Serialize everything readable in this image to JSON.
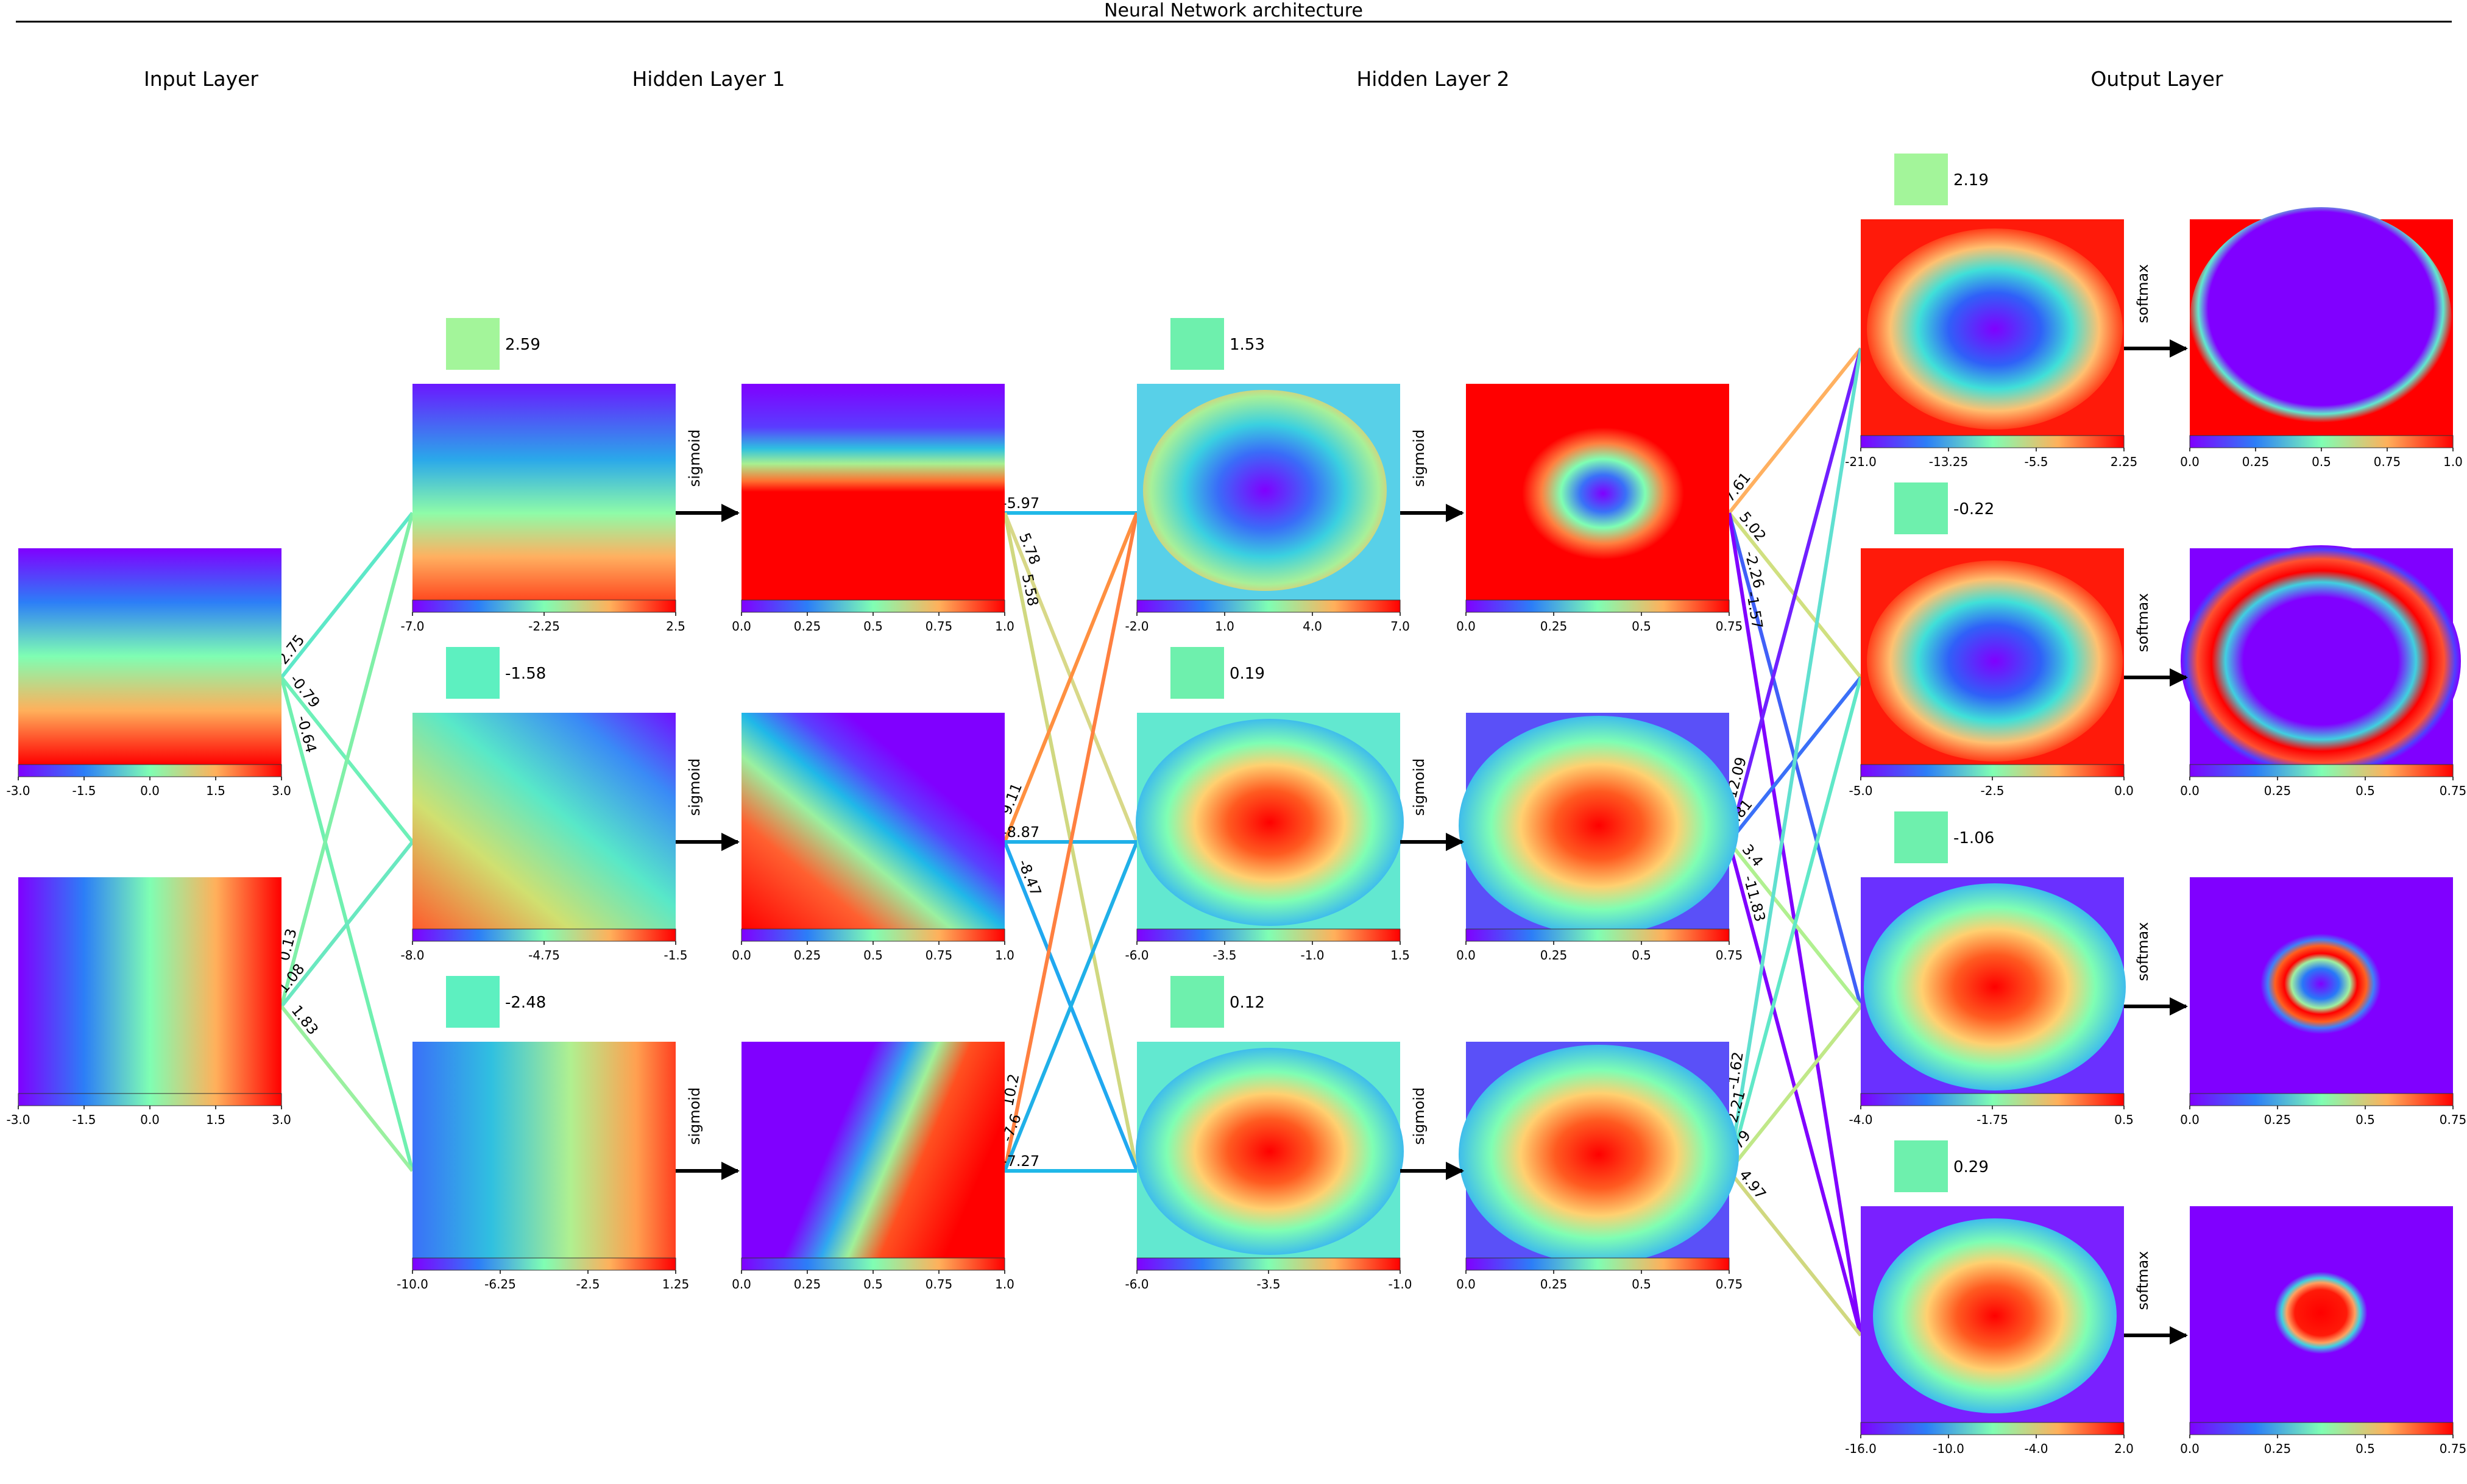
{
  "title": "Neural Network architecture",
  "layer_titles": [
    "Input Layer",
    "Hidden Layer 1",
    "Hidden Layer 2",
    "Output Layer"
  ],
  "activation_labels": {
    "hidden": "sigmoid",
    "output": "softmax"
  },
  "input_layer": {
    "nodes": [
      {
        "kind": "horizontal-gradient-rows",
        "ticks": [
          "-3.0",
          "-1.5",
          "0.0",
          "1.5",
          "3.0"
        ]
      },
      {
        "kind": "vertical-gradient-columns",
        "ticks": [
          "-3.0",
          "-1.5",
          "0.0",
          "1.5",
          "3.0"
        ]
      }
    ]
  },
  "hidden_layer_1": {
    "nodes": [
      {
        "bias": "2.59",
        "bias_color": "#a3f59a",
        "pre_ticks": [
          "-7.0",
          "-2.25",
          "2.5"
        ],
        "post_ticks": [
          "0.0",
          "0.25",
          "0.5",
          "0.75",
          "1.0"
        ]
      },
      {
        "bias": "-1.58",
        "bias_color": "#5df0c0",
        "pre_ticks": [
          "-8.0",
          "-4.75",
          "-1.5"
        ],
        "post_ticks": [
          "0.0",
          "0.25",
          "0.5",
          "0.75",
          "1.0"
        ]
      },
      {
        "bias": "-2.48",
        "bias_color": "#5df0c0",
        "pre_ticks": [
          "-10.0",
          "-6.25",
          "-2.5",
          "1.25"
        ],
        "post_ticks": [
          "0.0",
          "0.25",
          "0.5",
          "0.75",
          "1.0"
        ]
      }
    ],
    "weights_from_input": [
      "-2.75",
      "-0.79",
      "-0.64",
      "0.13",
      "-1.08",
      "1.83"
    ]
  },
  "hidden_layer_2": {
    "nodes": [
      {
        "bias": "1.53",
        "bias_color": "#6ef0ad",
        "pre_ticks": [
          "-2.0",
          "1.0",
          "4.0",
          "7.0"
        ],
        "post_ticks": [
          "0.0",
          "0.25",
          "0.5",
          "0.75"
        ]
      },
      {
        "bias": "0.19",
        "bias_color": "#6ef0ad",
        "pre_ticks": [
          "-6.0",
          "-3.5",
          "-1.0",
          "1.5"
        ],
        "post_ticks": [
          "0.0",
          "0.25",
          "0.5",
          "0.75"
        ]
      },
      {
        "bias": "0.12",
        "bias_color": "#6ef0ad",
        "pre_ticks": [
          "-6.0",
          "-3.5",
          "-1.0"
        ],
        "post_ticks": [
          "0.0",
          "0.25",
          "0.5",
          "0.75"
        ]
      }
    ],
    "weights_from_h1": [
      "-5.97",
      "5.78",
      "5.58",
      "9.11",
      "-8.87",
      "-8.47",
      "10.2",
      "-7.6",
      "-7.27"
    ]
  },
  "output_layer": {
    "nodes": [
      {
        "bias": "2.19",
        "bias_color": "#a3f59a",
        "pre_ticks": [
          "-21.0",
          "-13.25",
          "-5.5",
          "2.25"
        ],
        "post_ticks": [
          "0.0",
          "0.25",
          "0.5",
          "0.75",
          "1.0"
        ]
      },
      {
        "bias": "-0.22",
        "bias_color": "#6ef0ad",
        "pre_ticks": [
          "-5.0",
          "-2.5",
          "0.0"
        ],
        "post_ticks": [
          "0.0",
          "0.25",
          "0.5",
          "0.75"
        ]
      },
      {
        "bias": "-1.06",
        "bias_color": "#6ef0ad",
        "pre_ticks": [
          "-4.0",
          "-1.75",
          "0.5"
        ],
        "post_ticks": [
          "0.0",
          "0.25",
          "0.5",
          "0.75"
        ]
      },
      {
        "bias": "0.29",
        "bias_color": "#6ef0ad",
        "pre_ticks": [
          "-16.0",
          "-10.0",
          "-4.0",
          "2.0"
        ],
        "post_ticks": [
          "0.0",
          "0.25",
          "0.5",
          "0.75"
        ]
      }
    ],
    "weights_from_h2": [
      "7.61",
      "5.02",
      "-2.26",
      "-1.57",
      "-12.09",
      "-2.81",
      "3.4",
      "-11.83",
      "-1.62",
      "-2.21",
      "2.79",
      "4.97"
    ]
  }
}
